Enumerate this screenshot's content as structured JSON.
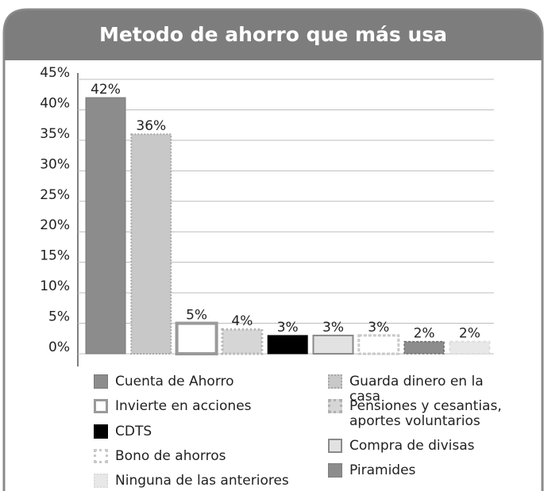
{
  "chart_data": {
    "type": "bar",
    "title": "Metodo de ahorro que más usa",
    "categories": [
      "Cuenta de Ahorro",
      "Guarda dinero en la casa",
      "Invierte en acciones",
      "Pensiones y cesantias, aportes voluntarios",
      "CDTS",
      "Compra de divisas",
      "Bono de ahorros",
      "Piramides",
      "Ninguna de las anteriores"
    ],
    "values": [
      42,
      36,
      5,
      4,
      3,
      3,
      3,
      2,
      2
    ],
    "value_labels": [
      "42%",
      "36%",
      "5%",
      "4%",
      "3%",
      "3%",
      "3%",
      "2%",
      "2%"
    ],
    "colors": [
      "#8c8c8c",
      "#c8c8c8",
      "#ffffff",
      "#d6d6d6",
      "#000000",
      "#e2e2e2",
      "#ffffff",
      "#8c8c8c",
      "#e8e8e8"
    ],
    "ylim": [
      0,
      45
    ],
    "yticks": [
      {
        "value": 0,
        "label": "0%"
      },
      {
        "value": 5,
        "label": "5%"
      },
      {
        "value": 10,
        "label": "10%"
      },
      {
        "value": 15,
        "label": "15%"
      },
      {
        "value": 20,
        "label": "20%"
      },
      {
        "value": 25,
        "label": "25%"
      },
      {
        "value": 30,
        "label": "30%"
      },
      {
        "value": 35,
        "label": "35%"
      },
      {
        "value": 40,
        "label": "40%"
      },
      {
        "value": 45,
        "label": "45%"
      }
    ],
    "grid": true
  }
}
